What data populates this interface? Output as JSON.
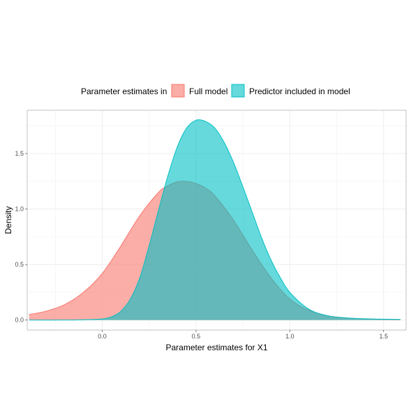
{
  "chart_data": {
    "type": "area",
    "xlabel": "Parameter estimates for X1",
    "ylabel": "Density",
    "xlim": [
      -0.4,
      1.62
    ],
    "ylim": [
      -0.09,
      1.89
    ],
    "x_ticks": [
      0.0,
      0.5,
      1.0,
      1.5
    ],
    "x_tick_labels": [
      "0.0",
      "0.5",
      "1.0",
      "1.5"
    ],
    "y_ticks": [
      0.0,
      0.5,
      1.0,
      1.5
    ],
    "y_tick_labels": [
      "0.0",
      "0.5",
      "1.0",
      "1.5"
    ],
    "grid": true,
    "legend": {
      "title": "Parameter estimates in",
      "position": "top",
      "entries": [
        "Full model",
        "Predictor included in model"
      ]
    },
    "series": [
      {
        "name": "Full model",
        "color": "#F8766D",
        "x": [
          -0.39,
          -0.3,
          -0.2,
          -0.1,
          0.0,
          0.1,
          0.2,
          0.3,
          0.35,
          0.4,
          0.45,
          0.5,
          0.55,
          0.6,
          0.7,
          0.8,
          0.9,
          1.0,
          1.1,
          1.2,
          1.3,
          1.4,
          1.5,
          1.59
        ],
        "values": [
          0.05,
          0.08,
          0.14,
          0.25,
          0.42,
          0.67,
          0.94,
          1.15,
          1.21,
          1.245,
          1.25,
          1.23,
          1.19,
          1.12,
          0.9,
          0.63,
          0.38,
          0.19,
          0.09,
          0.04,
          0.02,
          0.01,
          0.005,
          0.003
        ]
      },
      {
        "name": "Predictor included in model",
        "color": "#00BFC4",
        "x": [
          -0.39,
          -0.2,
          -0.1,
          0.0,
          0.05,
          0.1,
          0.15,
          0.2,
          0.25,
          0.3,
          0.35,
          0.4,
          0.45,
          0.5,
          0.55,
          0.6,
          0.65,
          0.7,
          0.75,
          0.8,
          0.85,
          0.9,
          0.95,
          1.0,
          1.1,
          1.2,
          1.3,
          1.4,
          1.5,
          1.59
        ],
        "values": [
          0.0,
          0.0,
          0.003,
          0.01,
          0.03,
          0.08,
          0.19,
          0.38,
          0.67,
          0.99,
          1.3,
          1.56,
          1.73,
          1.8,
          1.79,
          1.73,
          1.6,
          1.42,
          1.2,
          0.97,
          0.74,
          0.54,
          0.38,
          0.25,
          0.1,
          0.04,
          0.02,
          0.012,
          0.008,
          0.006
        ]
      }
    ]
  }
}
